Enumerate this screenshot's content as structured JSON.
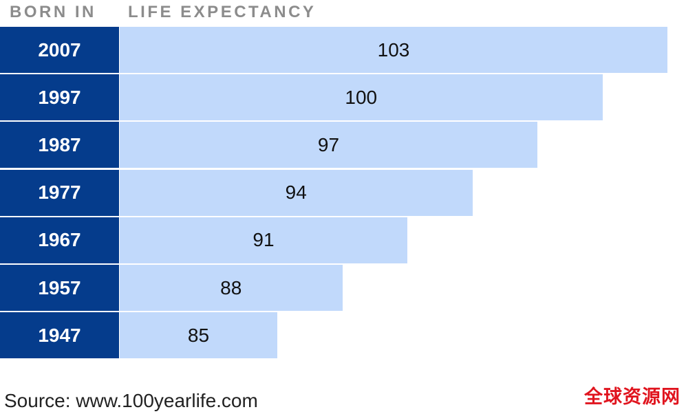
{
  "header": {
    "left_label": "BORN IN",
    "right_label": "LIFE EXPECTANCY"
  },
  "chart_data": {
    "type": "bar",
    "orientation": "horizontal",
    "title": "",
    "xlabel": "LIFE EXPECTANCY",
    "ylabel": "BORN IN",
    "categories": [
      "2007",
      "1997",
      "1987",
      "1977",
      "1967",
      "1957",
      "1947"
    ],
    "values": [
      103,
      100,
      97,
      94,
      91,
      88,
      85
    ],
    "value_labels": [
      "103",
      "100",
      "97",
      "94",
      "91",
      "88",
      "85"
    ],
    "colors": {
      "category_cell": "#053c8c",
      "bar": "#c1d9fb",
      "header_text": "#8c8c8c"
    }
  },
  "footer": {
    "source": "Source: www.100yearlife.com",
    "watermark": "全球资源网",
    "watermark_color": "#e0141e"
  }
}
